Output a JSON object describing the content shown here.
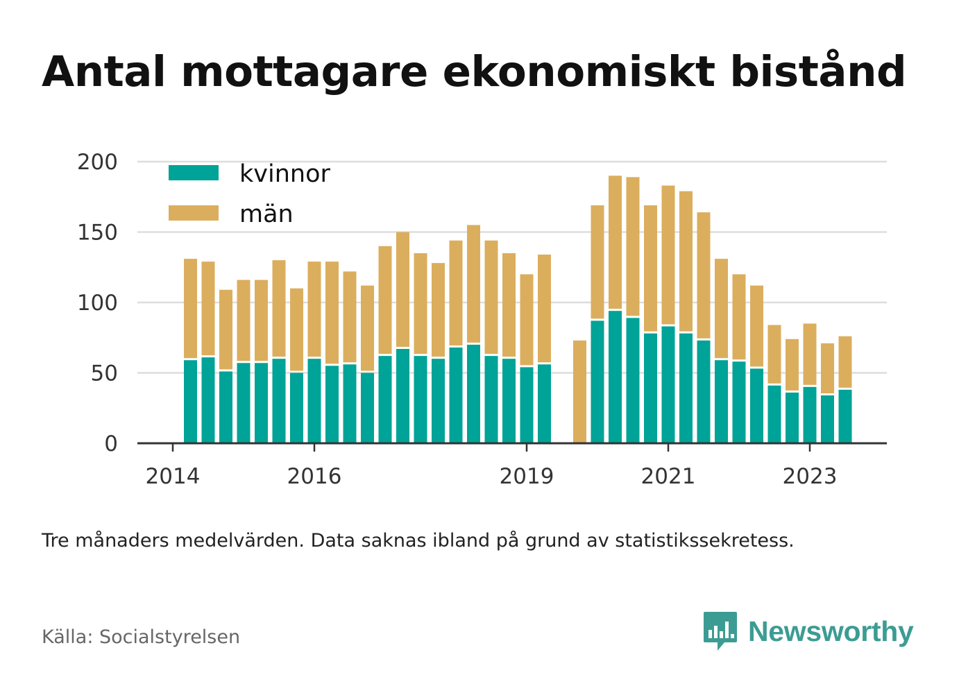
{
  "title": "Antal mottagare ekonomiskt bistånd",
  "note": "Tre månaders medelvärden. Data saknas ibland på grund av statistikssekretess.",
  "source": "Källa: Socialstyrelsen",
  "brand": {
    "name": "Newsworthy",
    "color": "#3c9c93",
    "icon": "bar-chart-speech-bubble-icon"
  },
  "colors": {
    "kvinnor": "#00a397",
    "man": "#dbae5e",
    "grid": "#dddddd",
    "axis": "#333333",
    "tick_text": "#333333"
  },
  "chart_data": {
    "type": "bar",
    "stacked": true,
    "ylim": [
      0,
      200
    ],
    "yticks": [
      0,
      50,
      100,
      150,
      200
    ],
    "xticks": [
      "2014",
      "2016",
      "2019",
      "2021",
      "2023"
    ],
    "xtick_positions": [
      0,
      8,
      20,
      28,
      36
    ],
    "legend": {
      "position": "top-left",
      "entries": [
        "kvinnor",
        "män"
      ]
    },
    "grid": true,
    "series": [
      {
        "name": "kvinnor",
        "values": [
          null,
          59,
          61,
          51,
          57,
          57,
          60,
          50,
          60,
          55,
          56,
          50,
          62,
          67,
          62,
          60,
          68,
          70,
          62,
          60,
          54,
          56,
          null,
          null,
          87,
          94,
          89,
          78,
          83,
          78,
          73,
          59,
          58,
          53,
          41,
          36,
          40,
          34,
          38
        ]
      },
      {
        "name": "män",
        "values": [
          null,
          72,
          68,
          58,
          59,
          59,
          70,
          60,
          69,
          74,
          66,
          62,
          78,
          83,
          73,
          68,
          76,
          85,
          82,
          75,
          66,
          78,
          null,
          73,
          82,
          96,
          100,
          91,
          100,
          101,
          91,
          72,
          62,
          59,
          43,
          38,
          45,
          37,
          38
        ]
      }
    ]
  }
}
